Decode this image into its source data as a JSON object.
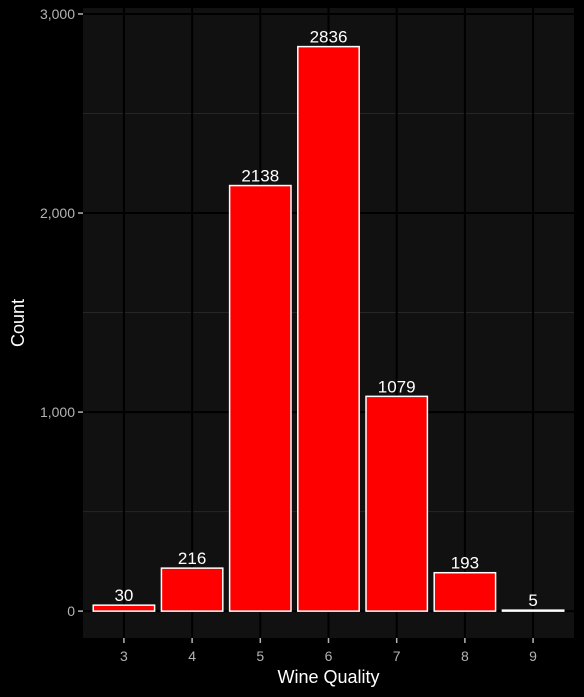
{
  "chart_data": {
    "type": "bar",
    "xlabel": "Wine Quality",
    "ylabel": "Count",
    "categories": [
      "3",
      "4",
      "5",
      "6",
      "7",
      "8",
      "9"
    ],
    "values": [
      30,
      216,
      2138,
      2836,
      1079,
      193,
      5
    ],
    "data_labels": [
      "30",
      "216",
      "2138",
      "2836",
      "1079",
      "193",
      "5"
    ],
    "ylim": [
      -135,
      3030
    ],
    "y_ticks": [
      0,
      1000,
      2000,
      3000
    ],
    "y_tick_labels": [
      "0",
      "1,000",
      "2,000",
      "3,000"
    ],
    "grid": true,
    "legend": "none"
  },
  "colors": {
    "background": "#000000",
    "panel": "#111111",
    "grid_major": "#000000",
    "grid_minor": "#262626",
    "bar_fill": "#ff0000",
    "bar_outline": "#ffffff",
    "tick_text": "#b3b3b3",
    "axis_title": "#ffffff",
    "data_label": "#ffffff"
  }
}
